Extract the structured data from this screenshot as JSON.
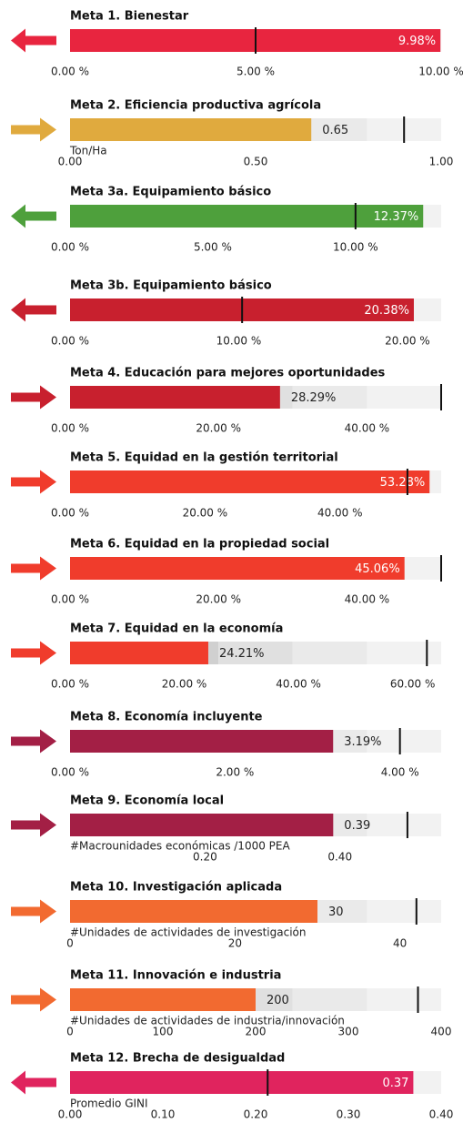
{
  "chart_data": [
    {
      "type": "bullet",
      "title": "Meta 1. Bienestar",
      "value": 9.98,
      "value_label": "9.98%",
      "target": 5,
      "ranges": [
        2,
        4,
        6,
        8,
        10
      ],
      "color": "#e8253f",
      "arrow": "left",
      "xlim": [
        0,
        10
      ],
      "xticks": [
        {
          "value": 0,
          "label": "0.00 %"
        },
        {
          "value": 5,
          "label": "5.00 %"
        },
        {
          "value": 10,
          "label": "10.00 %"
        }
      ]
    },
    {
      "type": "bullet",
      "title": "Meta 2. Eficiencia productiva agrícola",
      "unit_label": "Ton/Ha",
      "value": 0.65,
      "value_label": "0.65",
      "target": 0.9,
      "ranges": [
        0.2,
        0.4,
        0.6,
        0.8,
        1
      ],
      "color": "#e0aa3e",
      "arrow": "right",
      "xlim": [
        0,
        1
      ],
      "xticks": [
        {
          "value": 0,
          "label": "0.00"
        },
        {
          "value": 0.5,
          "label": "0.50"
        },
        {
          "value": 1,
          "label": "1.00"
        }
      ]
    },
    {
      "type": "bullet",
      "title": "Meta 3a. Equipamiento básico",
      "value": 12.37,
      "value_label": "12.37%",
      "target": 10,
      "ranges": [
        2.6,
        5.2,
        7.8,
        10.4,
        13
      ],
      "color": "#4ea03c",
      "arrow": "left",
      "xlim": [
        0,
        13
      ],
      "xticks": [
        {
          "value": 0,
          "label": "0.00 %"
        },
        {
          "value": 5,
          "label": "5.00 %"
        },
        {
          "value": 10,
          "label": "10.00 %"
        }
      ]
    },
    {
      "type": "bullet",
      "title": "Meta 3b. Equipamiento básico",
      "value": 20.38,
      "value_label": "20.38%",
      "target": 10.2,
      "ranges": [
        4.4,
        8.8,
        13.2,
        17.6,
        22
      ],
      "color": "#c8202e",
      "arrow": "left",
      "xlim": [
        0,
        22
      ],
      "xticks": [
        {
          "value": 0,
          "label": "0.00 %"
        },
        {
          "value": 10,
          "label": "10.00 %"
        },
        {
          "value": 20,
          "label": "20.00 %"
        }
      ]
    },
    {
      "type": "bullet",
      "title": "Meta 4. Educación para mejores oportunidades",
      "value": 28.29,
      "value_label": "28.29%",
      "target": 50,
      "ranges": [
        10,
        20,
        30,
        40,
        50
      ],
      "color": "#c8202e",
      "arrow": "right",
      "xlim": [
        0,
        50
      ],
      "xticks": [
        {
          "value": 0,
          "label": "0.00 %"
        },
        {
          "value": 20,
          "label": "20.00 %"
        },
        {
          "value": 40,
          "label": "40.00 %"
        }
      ]
    },
    {
      "type": "bullet",
      "title": "Meta 5. Equidad en la gestión territorial",
      "value": 53.28,
      "value_label": "53.28%",
      "target": 50,
      "ranges": [
        11,
        22,
        33,
        44,
        55
      ],
      "color": "#f03c2c",
      "arrow": "right",
      "xlim": [
        0,
        55
      ],
      "xticks": [
        {
          "value": 0,
          "label": "0.00 %"
        },
        {
          "value": 20,
          "label": "20.00 %"
        },
        {
          "value": 40,
          "label": "40.00 %"
        }
      ]
    },
    {
      "type": "bullet",
      "title": "Meta 6. Equidad en la propiedad social",
      "value": 45.06,
      "value_label": "45.06%",
      "target": 50,
      "ranges": [
        10,
        20,
        30,
        40,
        50
      ],
      "color": "#f03c2c",
      "arrow": "right",
      "xlim": [
        0,
        50
      ],
      "xticks": [
        {
          "value": 0,
          "label": "0.00 %"
        },
        {
          "value": 20,
          "label": "20.00 %"
        },
        {
          "value": 40,
          "label": "40.00 %"
        }
      ]
    },
    {
      "type": "bullet",
      "title": "Meta 7. Equidad en la economía",
      "value": 24.21,
      "value_label": "24.21%",
      "target": 62.5,
      "ranges": [
        13,
        26,
        39,
        52,
        65
      ],
      "color": "#f03c2c",
      "arrow": "right",
      "xlim": [
        0,
        65
      ],
      "xticks": [
        {
          "value": 0,
          "label": "0.00 %"
        },
        {
          "value": 20,
          "label": "20.00 %"
        },
        {
          "value": 40,
          "label": "40.00 %"
        },
        {
          "value": 60,
          "label": "60.00 %"
        }
      ]
    },
    {
      "type": "bullet",
      "title": "Meta 8. Economía incluyente",
      "value": 3.19,
      "value_label": "3.19%",
      "target": 4,
      "ranges": [
        0.9,
        1.8,
        2.7,
        3.6,
        4.5
      ],
      "color": "#a31f45",
      "arrow": "right",
      "xlim": [
        0,
        4.5
      ],
      "xticks": [
        {
          "value": 0,
          "label": "0.00 %"
        },
        {
          "value": 2,
          "label": "2.00 %"
        },
        {
          "value": 4,
          "label": "4.00 %"
        }
      ]
    },
    {
      "type": "bullet",
      "title": "Meta 9. Economía local",
      "unit_label": "#Macrounidades económicas /1000 PEA",
      "value": 0.39,
      "value_label": "0.39",
      "target": 0.5,
      "ranges": [
        0.11,
        0.22,
        0.33,
        0.44,
        0.55
      ],
      "color": "#a31f45",
      "arrow": "right",
      "xlim": [
        0,
        0.55
      ],
      "xticks": [
        {
          "value": 0.2,
          "label": "0.20"
        },
        {
          "value": 0.4,
          "label": "0.40"
        }
      ]
    },
    {
      "type": "bullet",
      "title": "Meta 10. Investigación aplicada",
      "unit_label": "#Unidades de actividades de investigación",
      "value": 30,
      "value_label": "30",
      "target": 42,
      "ranges": [
        9,
        18,
        27,
        36,
        45
      ],
      "color": "#f26a30",
      "arrow": "right",
      "xlim": [
        0,
        45
      ],
      "xticks": [
        0,
        20,
        40
      ]
    },
    {
      "type": "bullet",
      "title": "Meta 11.  Innovación e industria",
      "unit_label": "#Unidades de actividades de industria/innovación",
      "value": 200,
      "value_label": "200",
      "target": 375,
      "ranges": [
        80,
        160,
        240,
        320,
        400
      ],
      "color": "#f26a30",
      "arrow": "right",
      "xlim": [
        0,
        400
      ],
      "xticks": [
        0,
        100,
        200,
        300,
        400
      ]
    },
    {
      "type": "bullet",
      "title": "Meta 12. Brecha de desigualdad",
      "unit_label": "Promedio GINI",
      "value": 0.37,
      "value_label": "0.37",
      "target": 0.213,
      "ranges": [
        0.08,
        0.16,
        0.24,
        0.32,
        0.4
      ],
      "color": "#e0245e",
      "arrow": "left",
      "xlim": [
        0,
        0.4
      ],
      "xticks": [
        {
          "value": 0,
          "label": "0.00"
        },
        {
          "value": 0.1,
          "label": "0.10"
        },
        {
          "value": 0.2,
          "label": "0.20"
        },
        {
          "value": 0.3,
          "label": "0.30"
        },
        {
          "value": 0.4,
          "label": "0.40"
        }
      ]
    }
  ]
}
